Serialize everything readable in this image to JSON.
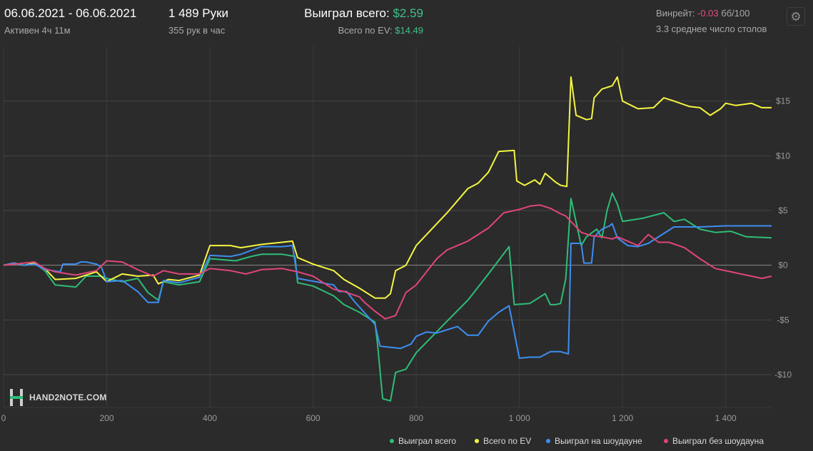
{
  "header": {
    "date_range": "06.06.2021 - 06.06.2021",
    "active": "Активен 4ч 11м",
    "hands": "1 489 Руки",
    "hands_per_hour": "355 рук в час",
    "won_label": "Выиграл всего: ",
    "won_value": "$2.59",
    "ev_label": "Всего по EV: ",
    "ev_value": "$14.49",
    "winrate_label": "Винрейт: ",
    "winrate_value": "-0.03",
    "winrate_unit": " бб/100",
    "avg_tables": "3.3 среднее число столов",
    "settings_icon": "gear-icon"
  },
  "logo": {
    "text": "HAND2NOTE.COM"
  },
  "colors": {
    "green": "#2ebd78",
    "yellow": "#f5f542",
    "blue": "#3d8ef0",
    "pink": "#e0457a",
    "background": "#2b2b2b",
    "grid": "#444444",
    "zero_line": "#8a8a8a"
  },
  "chart_data": {
    "type": "line",
    "title": "",
    "xlabel": "",
    "ylabel": "",
    "xlim": [
      0,
      1489
    ],
    "ylim": [
      -13,
      20
    ],
    "grid": true,
    "legend_position": "bottom-right",
    "x_ticks": [
      0,
      200,
      400,
      600,
      800,
      1000,
      1200,
      1400
    ],
    "x_tick_labels": [
      "0",
      "200",
      "400",
      "600",
      "800",
      "1 000",
      "1 200",
      "1 400"
    ],
    "y_ticks": [
      15,
      10,
      5,
      0,
      -5,
      -10
    ],
    "y_tick_labels": [
      "$15",
      "$10",
      "$5",
      "$0",
      "-$5",
      "-$10"
    ],
    "series": [
      {
        "name": "Выиграл всего",
        "color": "#2ebd78",
        "points": [
          [
            0,
            0
          ],
          [
            20,
            0.2
          ],
          [
            40,
            0
          ],
          [
            60,
            0.2
          ],
          [
            80,
            -0.5
          ],
          [
            100,
            -1.8
          ],
          [
            140,
            -2.0
          ],
          [
            160,
            -1.0
          ],
          [
            190,
            -1.0
          ],
          [
            200,
            -1.2
          ],
          [
            230,
            -1.5
          ],
          [
            260,
            -1.2
          ],
          [
            280,
            -2.5
          ],
          [
            300,
            -3.2
          ],
          [
            310,
            -1.5
          ],
          [
            340,
            -1.8
          ],
          [
            380,
            -1.5
          ],
          [
            400,
            0.6
          ],
          [
            450,
            0.4
          ],
          [
            480,
            0.8
          ],
          [
            500,
            1.0
          ],
          [
            540,
            1.0
          ],
          [
            565,
            0.8
          ],
          [
            570,
            -1.6
          ],
          [
            600,
            -1.9
          ],
          [
            640,
            -2.8
          ],
          [
            660,
            -3.6
          ],
          [
            690,
            -4.3
          ],
          [
            720,
            -5.2
          ],
          [
            725,
            -7.2
          ],
          [
            735,
            -12.2
          ],
          [
            750,
            -12.4
          ],
          [
            760,
            -9.8
          ],
          [
            780,
            -9.5
          ],
          [
            800,
            -8.0
          ],
          [
            860,
            -5.1
          ],
          [
            900,
            -3.2
          ],
          [
            940,
            -0.8
          ],
          [
            980,
            1.7
          ],
          [
            990,
            -3.6
          ],
          [
            1020,
            -3.5
          ],
          [
            1050,
            -2.6
          ],
          [
            1060,
            -3.6
          ],
          [
            1070,
            -3.6
          ],
          [
            1080,
            -3.5
          ],
          [
            1090,
            -1.2
          ],
          [
            1100,
            6.1
          ],
          [
            1120,
            1.8
          ],
          [
            1130,
            2.6
          ],
          [
            1150,
            3.3
          ],
          [
            1160,
            2.5
          ],
          [
            1170,
            5.0
          ],
          [
            1180,
            6.6
          ],
          [
            1190,
            5.6
          ],
          [
            1200,
            4.0
          ],
          [
            1240,
            4.3
          ],
          [
            1280,
            4.8
          ],
          [
            1300,
            4.0
          ],
          [
            1320,
            4.2
          ],
          [
            1350,
            3.3
          ],
          [
            1380,
            3.0
          ],
          [
            1410,
            3.1
          ],
          [
            1440,
            2.6
          ],
          [
            1489,
            2.5
          ]
        ]
      },
      {
        "name": "Всего по EV",
        "color": "#f5f542",
        "points": [
          [
            0,
            0
          ],
          [
            20,
            0.2
          ],
          [
            40,
            0
          ],
          [
            60,
            0.2
          ],
          [
            80,
            -0.3
          ],
          [
            100,
            -1.3
          ],
          [
            140,
            -1.2
          ],
          [
            180,
            -0.6
          ],
          [
            200,
            -1.5
          ],
          [
            230,
            -0.8
          ],
          [
            260,
            -1.0
          ],
          [
            290,
            -0.9
          ],
          [
            300,
            -1.7
          ],
          [
            320,
            -1.3
          ],
          [
            340,
            -1.4
          ],
          [
            380,
            -0.9
          ],
          [
            400,
            1.8
          ],
          [
            440,
            1.8
          ],
          [
            460,
            1.6
          ],
          [
            500,
            1.9
          ],
          [
            540,
            2.1
          ],
          [
            560,
            2.2
          ],
          [
            570,
            0.7
          ],
          [
            600,
            0.1
          ],
          [
            620,
            -0.2
          ],
          [
            640,
            -0.5
          ],
          [
            660,
            -1.3
          ],
          [
            690,
            -2.1
          ],
          [
            720,
            -3.0
          ],
          [
            740,
            -3.0
          ],
          [
            750,
            -2.6
          ],
          [
            760,
            -0.5
          ],
          [
            780,
            0.0
          ],
          [
            800,
            1.8
          ],
          [
            860,
            4.8
          ],
          [
            900,
            7.0
          ],
          [
            920,
            7.5
          ],
          [
            940,
            8.5
          ],
          [
            960,
            10.4
          ],
          [
            990,
            10.5
          ],
          [
            995,
            7.7
          ],
          [
            1010,
            7.3
          ],
          [
            1030,
            7.8
          ],
          [
            1040,
            7.4
          ],
          [
            1050,
            8.4
          ],
          [
            1070,
            7.6
          ],
          [
            1080,
            7.3
          ],
          [
            1092,
            7.2
          ],
          [
            1100,
            17.2
          ],
          [
            1110,
            13.7
          ],
          [
            1130,
            13.3
          ],
          [
            1140,
            13.4
          ],
          [
            1145,
            15.3
          ],
          [
            1160,
            16.1
          ],
          [
            1180,
            16.4
          ],
          [
            1190,
            17.2
          ],
          [
            1200,
            15.0
          ],
          [
            1230,
            14.3
          ],
          [
            1260,
            14.4
          ],
          [
            1280,
            15.3
          ],
          [
            1300,
            15.0
          ],
          [
            1330,
            14.5
          ],
          [
            1350,
            14.4
          ],
          [
            1370,
            13.7
          ],
          [
            1390,
            14.3
          ],
          [
            1400,
            14.8
          ],
          [
            1420,
            14.6
          ],
          [
            1450,
            14.8
          ],
          [
            1470,
            14.4
          ],
          [
            1489,
            14.4
          ]
        ]
      },
      {
        "name": "Выиграл на шоудауне",
        "color": "#3d8ef0",
        "points": [
          [
            0,
            0
          ],
          [
            20,
            0.2
          ],
          [
            40,
            0
          ],
          [
            60,
            0.1
          ],
          [
            80,
            -0.4
          ],
          [
            110,
            -0.6
          ],
          [
            115,
            0.1
          ],
          [
            140,
            0.1
          ],
          [
            150,
            0.3
          ],
          [
            160,
            0.3
          ],
          [
            180,
            0.1
          ],
          [
            190,
            -0.2
          ],
          [
            200,
            -1.5
          ],
          [
            230,
            -1.4
          ],
          [
            260,
            -2.4
          ],
          [
            280,
            -3.4
          ],
          [
            300,
            -3.4
          ],
          [
            310,
            -1.4
          ],
          [
            340,
            -1.6
          ],
          [
            380,
            -1.1
          ],
          [
            400,
            0.9
          ],
          [
            440,
            0.8
          ],
          [
            460,
            1.0
          ],
          [
            500,
            1.7
          ],
          [
            540,
            1.7
          ],
          [
            560,
            1.8
          ],
          [
            570,
            -1.2
          ],
          [
            640,
            -1.8
          ],
          [
            650,
            -2.4
          ],
          [
            665,
            -2.4
          ],
          [
            680,
            -3.3
          ],
          [
            720,
            -5.4
          ],
          [
            730,
            -7.4
          ],
          [
            750,
            -7.5
          ],
          [
            770,
            -7.6
          ],
          [
            790,
            -7.2
          ],
          [
            800,
            -6.5
          ],
          [
            820,
            -6.1
          ],
          [
            840,
            -6.2
          ],
          [
            880,
            -5.6
          ],
          [
            900,
            -6.4
          ],
          [
            920,
            -6.4
          ],
          [
            940,
            -5.1
          ],
          [
            960,
            -4.3
          ],
          [
            980,
            -3.7
          ],
          [
            1000,
            -8.5
          ],
          [
            1020,
            -8.4
          ],
          [
            1040,
            -8.4
          ],
          [
            1060,
            -7.9
          ],
          [
            1080,
            -7.9
          ],
          [
            1095,
            -8.1
          ],
          [
            1100,
            2.0
          ],
          [
            1120,
            2.0
          ],
          [
            1125,
            0.2
          ],
          [
            1140,
            0.2
          ],
          [
            1145,
            2.6
          ],
          [
            1160,
            3.3
          ],
          [
            1175,
            3.6
          ],
          [
            1180,
            3.8
          ],
          [
            1190,
            2.5
          ],
          [
            1210,
            1.8
          ],
          [
            1230,
            1.7
          ],
          [
            1250,
            2.0
          ],
          [
            1300,
            3.5
          ],
          [
            1350,
            3.5
          ],
          [
            1400,
            3.6
          ],
          [
            1489,
            3.6
          ]
        ]
      },
      {
        "name": "Выиграл без шоудауна",
        "color": "#e0457a",
        "points": [
          [
            0,
            0
          ],
          [
            20,
            0.1
          ],
          [
            40,
            0.2
          ],
          [
            60,
            0.3
          ],
          [
            80,
            -0.3
          ],
          [
            100,
            -0.6
          ],
          [
            140,
            -0.9
          ],
          [
            180,
            -0.5
          ],
          [
            200,
            0.4
          ],
          [
            230,
            0.3
          ],
          [
            260,
            -0.4
          ],
          [
            290,
            -1.0
          ],
          [
            310,
            -0.5
          ],
          [
            340,
            -0.8
          ],
          [
            380,
            -0.8
          ],
          [
            400,
            -0.3
          ],
          [
            440,
            -0.5
          ],
          [
            470,
            -0.8
          ],
          [
            500,
            -0.4
          ],
          [
            540,
            -0.3
          ],
          [
            570,
            -0.6
          ],
          [
            600,
            -1.0
          ],
          [
            640,
            -2.2
          ],
          [
            660,
            -2.4
          ],
          [
            690,
            -2.9
          ],
          [
            700,
            -3.4
          ],
          [
            720,
            -4.2
          ],
          [
            740,
            -4.9
          ],
          [
            760,
            -4.6
          ],
          [
            780,
            -2.5
          ],
          [
            800,
            -1.8
          ],
          [
            840,
            0.6
          ],
          [
            860,
            1.4
          ],
          [
            880,
            1.8
          ],
          [
            900,
            2.2
          ],
          [
            940,
            3.4
          ],
          [
            970,
            4.8
          ],
          [
            1000,
            5.1
          ],
          [
            1020,
            5.4
          ],
          [
            1040,
            5.5
          ],
          [
            1060,
            5.2
          ],
          [
            1080,
            4.7
          ],
          [
            1090,
            4.5
          ],
          [
            1100,
            4.0
          ],
          [
            1120,
            3.0
          ],
          [
            1140,
            2.7
          ],
          [
            1160,
            2.6
          ],
          [
            1180,
            2.4
          ],
          [
            1190,
            2.6
          ],
          [
            1200,
            2.4
          ],
          [
            1230,
            1.8
          ],
          [
            1250,
            2.8
          ],
          [
            1270,
            2.1
          ],
          [
            1290,
            2.1
          ],
          [
            1320,
            1.6
          ],
          [
            1350,
            0.6
          ],
          [
            1380,
            -0.3
          ],
          [
            1410,
            -0.6
          ],
          [
            1440,
            -0.9
          ],
          [
            1470,
            -1.2
          ],
          [
            1489,
            -1.0
          ]
        ]
      }
    ]
  }
}
